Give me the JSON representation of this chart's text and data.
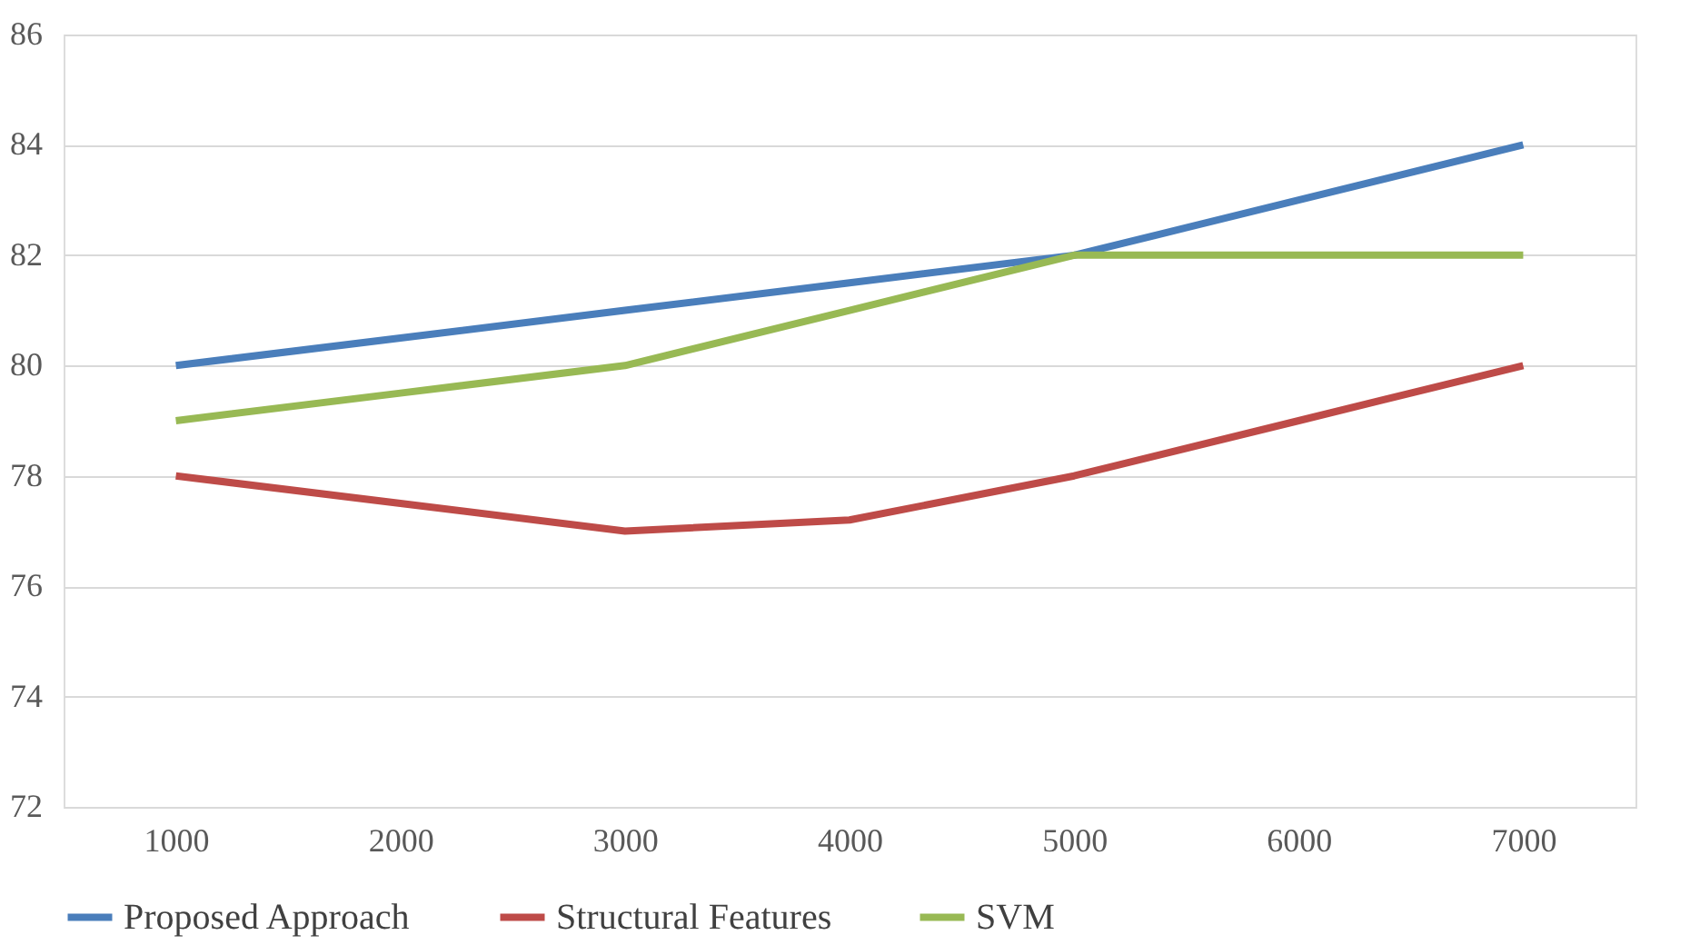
{
  "chart_data": {
    "type": "line",
    "categories": [
      "1000",
      "2000",
      "3000",
      "4000",
      "5000",
      "6000",
      "7000"
    ],
    "series": [
      {
        "name": "Proposed Approach",
        "color": "#4a7ebb",
        "values": [
          80,
          80.5,
          81,
          81.5,
          82,
          83,
          84
        ]
      },
      {
        "name": "Structural Features",
        "color": "#be4b48",
        "values": [
          78,
          77.5,
          77,
          77.2,
          78,
          79,
          80
        ]
      },
      {
        "name": "SVM",
        "color": "#98b954",
        "values": [
          79,
          79.5,
          80,
          81,
          82,
          82,
          82
        ]
      }
    ],
    "ylim": [
      72,
      86
    ],
    "yticks": [
      72,
      74,
      76,
      78,
      80,
      82,
      84,
      86
    ],
    "grid": "y",
    "legend": "bottom",
    "marker": "none",
    "line_style": "solid"
  }
}
